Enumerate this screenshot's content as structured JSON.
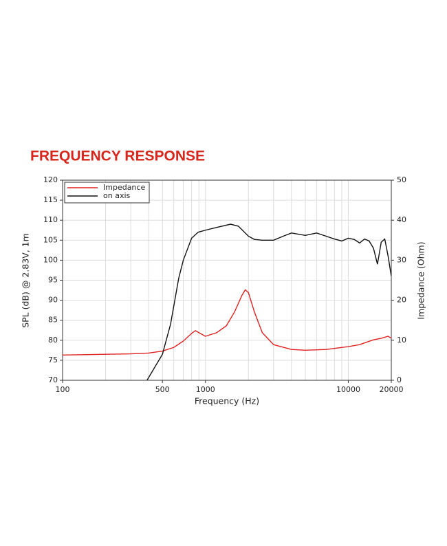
{
  "chart_data": {
    "type": "line",
    "title": "FREQUENCY RESPONSE",
    "x_label": "Frequency (Hz)",
    "y_label": "SPL (dB) @ 2.83V, 1m",
    "y2_label": "Impedance (Ohm)",
    "x_log": true,
    "xlim": [
      100,
      20000
    ],
    "xticks": [
      100,
      500,
      1000,
      10000,
      20000
    ],
    "xgrid": [
      200,
      300,
      400,
      500,
      600,
      700,
      800,
      900,
      1000,
      2000,
      3000,
      4000,
      5000,
      6000,
      7000,
      8000,
      9000,
      10000
    ],
    "ylim": [
      70,
      120
    ],
    "yticks": [
      70,
      75,
      80,
      85,
      90,
      95,
      100,
      105,
      110,
      115,
      120
    ],
    "y2lim": [
      0,
      50
    ],
    "y2ticks": [
      0,
      10,
      20,
      30,
      40,
      50
    ],
    "grid": true,
    "legend": "upper left",
    "series": [
      {
        "name": "Impedance",
        "color": "#e02020",
        "axis": "y2",
        "x": [
          100,
          200,
          300,
          400,
          500,
          600,
          700,
          800,
          850,
          900,
          1000,
          1200,
          1400,
          1600,
          1800,
          1900,
          2000,
          2200,
          2500,
          3000,
          4000,
          5000,
          7000,
          10000,
          12000,
          15000,
          17000,
          19000,
          20000
        ],
        "values": [
          6.3,
          6.5,
          6.6,
          6.8,
          7.3,
          8.2,
          9.8,
          11.7,
          12.4,
          11.9,
          11.0,
          11.9,
          13.6,
          17.1,
          21.2,
          22.6,
          21.9,
          17.1,
          11.9,
          8.9,
          7.7,
          7.5,
          7.7,
          8.4,
          8.9,
          10.1,
          10.5,
          11.0,
          10.5
        ]
      },
      {
        "name": "on axis",
        "color": "#111111",
        "x": [
          390,
          500,
          570,
          650,
          700,
          800,
          890,
          1000,
          1200,
          1500,
          1700,
          2000,
          2200,
          2500,
          3000,
          3500,
          4000,
          5000,
          6000,
          7000,
          8000,
          9000,
          10000,
          11000,
          12000,
          13000,
          14000,
          15000,
          16000,
          17000,
          18000,
          19000,
          20000
        ],
        "values": [
          70,
          76.5,
          84,
          95.5,
          100,
          105.5,
          107,
          107.5,
          108.2,
          109,
          108.5,
          106,
          105.2,
          105,
          105,
          106,
          106.8,
          106.2,
          106.8,
          106,
          105.3,
          104.8,
          105.5,
          105.2,
          104.3,
          105.3,
          104.8,
          103,
          99,
          104.5,
          105.3,
          101,
          96
        ]
      }
    ]
  }
}
